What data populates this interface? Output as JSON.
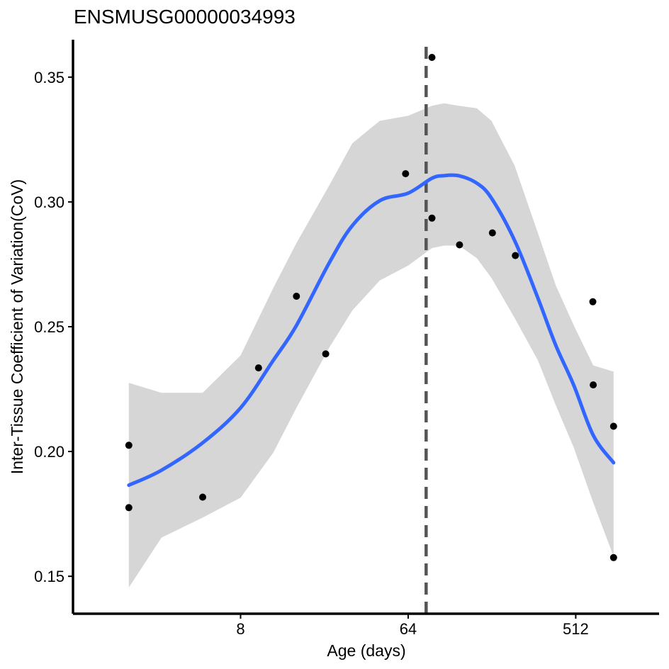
{
  "chart_data": {
    "type": "scatter",
    "title": "ENSMUSG00000034993",
    "xlabel": "Age (days)",
    "ylabel": "Inter-Tissue Coefficient of Variation(CoV)",
    "x_scale": "log2",
    "xlim": [
      1,
      1440
    ],
    "ylim": [
      0.135,
      0.365
    ],
    "x_ticks": [
      8,
      64,
      512
    ],
    "x_tick_labels": [
      "8",
      "64",
      "512"
    ],
    "y_ticks": [
      0.15,
      0.2,
      0.25,
      0.3,
      0.35
    ],
    "y_tick_labels": [
      "0.15",
      "0.20",
      "0.25",
      "0.30",
      "0.35"
    ],
    "points": [
      {
        "x": 2,
        "y": 0.2025
      },
      {
        "x": 2,
        "y": 0.1775
      },
      {
        "x": 5,
        "y": 0.1817
      },
      {
        "x": 10,
        "y": 0.2335
      },
      {
        "x": 16,
        "y": 0.2622
      },
      {
        "x": 23,
        "y": 0.2391
      },
      {
        "x": 62,
        "y": 0.3113
      },
      {
        "x": 86,
        "y": 0.3579
      },
      {
        "x": 86,
        "y": 0.2935
      },
      {
        "x": 121,
        "y": 0.2828
      },
      {
        "x": 182,
        "y": 0.2876
      },
      {
        "x": 242,
        "y": 0.2785
      },
      {
        "x": 633,
        "y": 0.26
      },
      {
        "x": 636,
        "y": 0.2267
      },
      {
        "x": 819,
        "y": 0.2101
      },
      {
        "x": 819,
        "y": 0.1575
      }
    ],
    "smooth": {
      "x": [
        2,
        3,
        5,
        8,
        12,
        16,
        24,
        32,
        45,
        64,
        86,
        100,
        120,
        150,
        180,
        240,
        320,
        400,
        500,
        636,
        819
      ],
      "y": [
        0.1865,
        0.1925,
        0.2035,
        0.2175,
        0.2365,
        0.2505,
        0.2755,
        0.2905,
        0.3005,
        0.3035,
        0.3095,
        0.3105,
        0.3105,
        0.3075,
        0.3015,
        0.2845,
        0.2615,
        0.2425,
        0.2265,
        0.2065,
        0.1955
      ]
    },
    "ci_lower": [
      0.1455,
      0.1655,
      0.1735,
      0.1815,
      0.1995,
      0.2175,
      0.2415,
      0.2565,
      0.2685,
      0.2745,
      0.2815,
      0.2825,
      0.2825,
      0.2775,
      0.2695,
      0.2535,
      0.2365,
      0.2185,
      0.2015,
      0.1795,
      0.158
    ],
    "ci_upper": [
      0.2275,
      0.2235,
      0.2235,
      0.2385,
      0.2655,
      0.2835,
      0.3065,
      0.3235,
      0.3325,
      0.3345,
      0.3385,
      0.3395,
      0.3385,
      0.3375,
      0.3325,
      0.3145,
      0.2875,
      0.2665,
      0.2505,
      0.2345,
      0.232
    ],
    "vline_x": 80,
    "grid": false,
    "legend": "none",
    "colors": {
      "points": "#000000",
      "smooth_line": "#3366ff",
      "ci_band": "#d6d6d6",
      "vline": "#555555"
    }
  }
}
